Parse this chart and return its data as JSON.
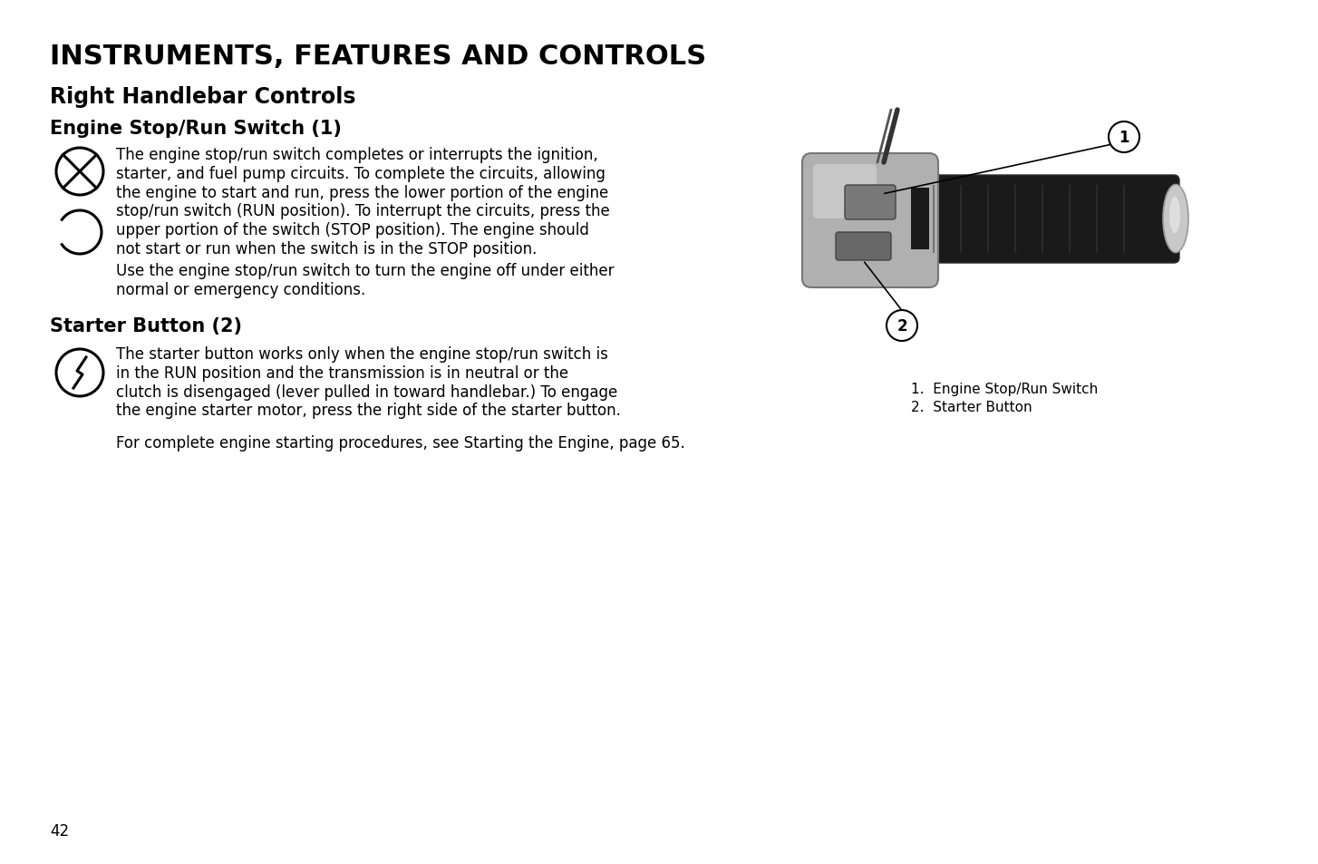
{
  "title": "INSTRUMENTS, FEATURES AND CONTROLS",
  "subtitle": "Right Handlebar Controls",
  "section1_heading": "Engine Stop/Run Switch (1)",
  "section1_para1": "The engine stop/run switch completes or interrupts the ignition,\nstarter, and fuel pump circuits. To complete the circuits, allowing\nthe engine to start and run, press the lower portion of the engine\nstop/run switch (RUN position). To interrupt the circuits, press the\nupper portion of the switch (STOP position). The engine should\nnot start or run when the switch is in the STOP position.",
  "section1_para2": "Use the engine stop/run switch to turn the engine off under either\nnormal or emergency conditions.",
  "section2_heading": "Starter Button (2)",
  "section2_para1": "The starter button works only when the engine stop/run switch is\nin the RUN position and the transmission is in neutral or the\nclutch is disengaged (lever pulled in toward handlebar.) To engage\nthe engine starter motor, press the right side of the starter button.",
  "section2_para2": "For complete engine starting procedures, see Starting the Engine, page 65.",
  "caption1": "1.  Engine Stop/Run Switch",
  "caption2": "2.  Starter Button",
  "page_number": "42",
  "bg_color": "#ffffff",
  "text_color": "#000000",
  "title_fontsize": 22,
  "subtitle_fontsize": 17,
  "section_heading_fontsize": 15,
  "body_fontsize": 12,
  "caption_fontsize": 11,
  "page_num_fontsize": 12
}
